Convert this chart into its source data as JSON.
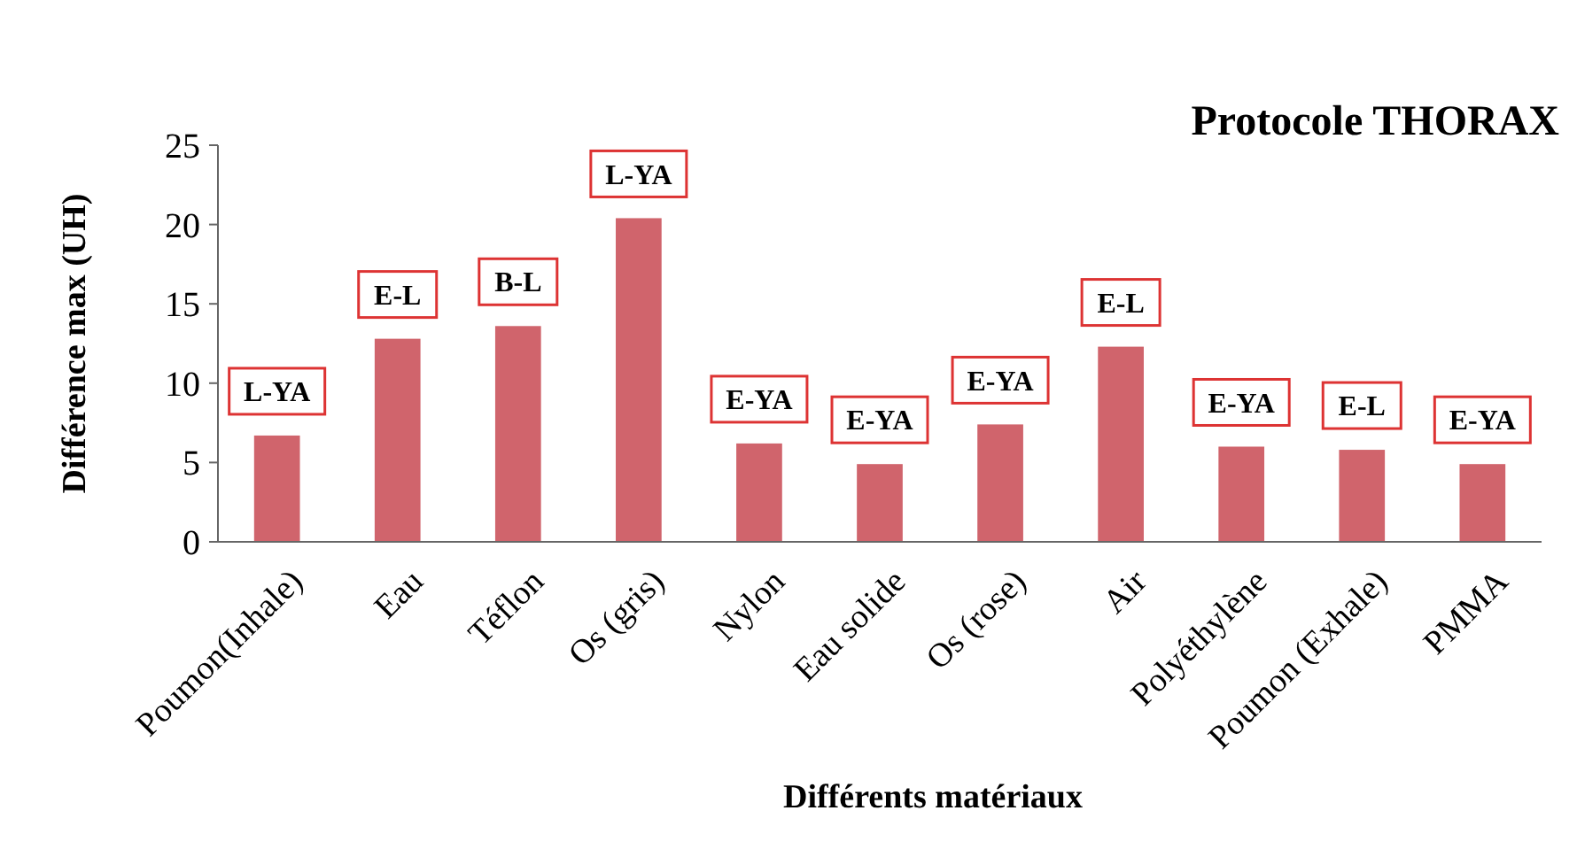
{
  "chart_data": {
    "type": "bar",
    "title": "Protocole THORAX",
    "xlabel": "Différents matériaux",
    "ylabel": "Différence max (UH)",
    "categories": [
      "Poumon(Inhale)",
      "Eau",
      "Téflon",
      "Os (gris)",
      "Nylon",
      "Eau solide",
      "Os (rose)",
      "Air",
      "Polyéthylène",
      "Poumon (Exhale)",
      "PMMA"
    ],
    "values": [
      6.7,
      12.8,
      13.6,
      20.4,
      6.2,
      4.9,
      7.4,
      12.3,
      6.0,
      5.8,
      4.9
    ],
    "value_labels": [
      "L-YA",
      "E-L",
      "B-L",
      "L-YA",
      "E-YA",
      "E-YA",
      "E-YA",
      "E-L",
      "E-YA",
      "E-L",
      "E-YA"
    ],
    "color": "#d0646c",
    "ylim": [
      0,
      25
    ],
    "yticks": [
      0,
      5,
      10,
      15,
      20,
      25
    ],
    "grid": false
  }
}
